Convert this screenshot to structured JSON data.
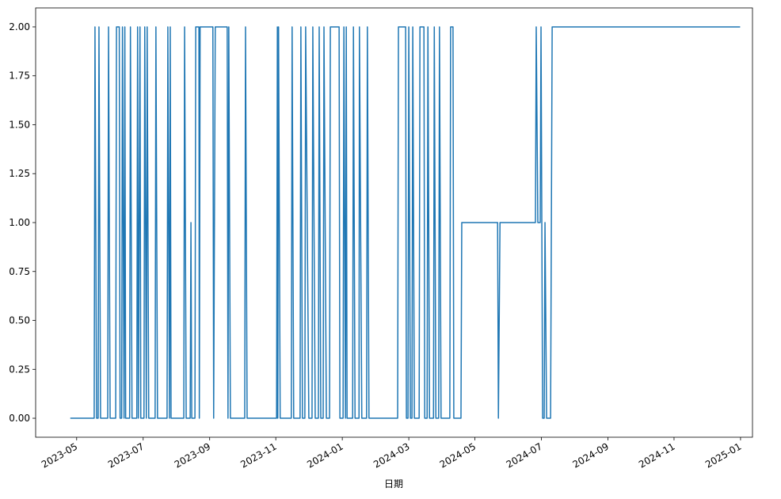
{
  "chart_data": {
    "type": "line",
    "x_label": "日期",
    "color": "#1f77b4",
    "x": [
      2023.317,
      2023.377,
      2023.379,
      2023.383,
      2023.387,
      2023.389,
      2023.393,
      2023.411,
      2023.413,
      2023.417,
      2023.431,
      2023.433,
      2023.44,
      2023.442,
      2023.446,
      2023.448,
      2023.452,
      2023.454,
      2023.456,
      2023.466,
      2023.468,
      2023.472,
      2023.484,
      2023.486,
      2023.488,
      2023.492,
      2023.494,
      2023.502,
      2023.504,
      2023.508,
      2023.51,
      2023.514,
      2023.53,
      2023.532,
      2023.536,
      2023.56,
      2023.562,
      2023.566,
      2023.568,
      2023.57,
      2023.602,
      2023.604,
      2023.608,
      2023.618,
      2023.62,
      2023.622,
      2023.63,
      2023.632,
      2023.64,
      2023.641,
      2023.643,
      2023.675,
      2023.677,
      2023.681,
      2023.711,
      2023.713,
      2023.715,
      2023.719,
      2023.755,
      2023.757,
      2023.761,
      2023.835,
      2023.837,
      2023.838,
      2023.84,
      2023.844,
      2023.872,
      2023.874,
      2023.878,
      2023.894,
      2023.896,
      2023.9,
      2023.906,
      2023.908,
      2023.916,
      2023.924,
      2023.926,
      2023.932,
      2023.94,
      2023.942,
      2023.946,
      2023.952,
      2023.954,
      2023.96,
      2023.968,
      2023.97,
      2023.992,
      2023.994,
      2024.002,
      2024.004,
      2024.008,
      2024.01,
      2024.012,
      2024.026,
      2024.028,
      2024.032,
      2024.042,
      2024.043,
      2024.049,
      2024.061,
      2024.063,
      2024.067,
      2024.139,
      2024.141,
      2024.159,
      2024.161,
      2024.165,
      2024.167,
      2024.171,
      2024.175,
      2024.177,
      2024.181,
      2024.193,
      2024.195,
      2024.205,
      2024.207,
      2024.213,
      2024.215,
      2024.219,
      2024.229,
      2024.231,
      2024.235,
      2024.242,
      2024.244,
      2024.248,
      2024.27,
      2024.272,
      2024.278,
      2024.28,
      2024.298,
      2024.3,
      2024.39,
      2024.392,
      2024.396,
      2024.485,
      2024.487,
      2024.491,
      2024.497,
      2024.499,
      2024.503,
      2024.507,
      2024.509,
      2024.513,
      2024.523,
      2024.527,
      2024.999
    ],
    "values": [
      0,
      0,
      2,
      0,
      0,
      2,
      0,
      0,
      2,
      0,
      0,
      2,
      2,
      0,
      0,
      2,
      0,
      2,
      0,
      0,
      2,
      0,
      0,
      2,
      0,
      2,
      0,
      0,
      2,
      0,
      2,
      0,
      0,
      2,
      0,
      0,
      2,
      0,
      2,
      0,
      0,
      2,
      0,
      0,
      1,
      0,
      0,
      2,
      2,
      0,
      2,
      2,
      0,
      2,
      2,
      0,
      2,
      0,
      0,
      2,
      0,
      0,
      2,
      0,
      2,
      0,
      0,
      2,
      0,
      0,
      2,
      0,
      0,
      2,
      0,
      0,
      2,
      0,
      0,
      2,
      0,
      0,
      2,
      0,
      0,
      2,
      2,
      0,
      0,
      2,
      0,
      2,
      0,
      0,
      2,
      0,
      0,
      2,
      0,
      0,
      2,
      0,
      0,
      2,
      2,
      0,
      0,
      2,
      0,
      0,
      2,
      0,
      0,
      2,
      2,
      0,
      0,
      2,
      0,
      0,
      2,
      0,
      0,
      2,
      0,
      0,
      2,
      2,
      0,
      0,
      1,
      1,
      0,
      1,
      1,
      2,
      1,
      1,
      2,
      0,
      0,
      1,
      0,
      0,
      2,
      2
    ],
    "xlim": [
      2023.23,
      2025.03
    ],
    "xticks": [
      {
        "value": 2023.333,
        "label": "2023-05"
      },
      {
        "value": 2023.5,
        "label": "2023-07"
      },
      {
        "value": 2023.667,
        "label": "2023-09"
      },
      {
        "value": 2023.833,
        "label": "2023-11"
      },
      {
        "value": 2024.0,
        "label": "2024-01"
      },
      {
        "value": 2024.167,
        "label": "2024-03"
      },
      {
        "value": 2024.333,
        "label": "2024-05"
      },
      {
        "value": 2024.5,
        "label": "2024-07"
      },
      {
        "value": 2024.667,
        "label": "2024-09"
      },
      {
        "value": 2024.833,
        "label": "2024-11"
      },
      {
        "value": 2025.0,
        "label": "2025-01"
      }
    ],
    "ylim": [
      -0.097,
      2.097
    ],
    "yticks": [
      {
        "value": 0,
        "label": "0.00"
      },
      {
        "value": 0.25,
        "label": "0.25"
      },
      {
        "value": 0.5,
        "label": "0.50"
      },
      {
        "value": 0.75,
        "label": "0.75"
      },
      {
        "value": 1,
        "label": "1.00"
      },
      {
        "value": 1.25,
        "label": "1.25"
      },
      {
        "value": 1.5,
        "label": "1.50"
      },
      {
        "value": 1.75,
        "label": "1.75"
      },
      {
        "value": 2,
        "label": "2.00"
      }
    ],
    "grid": false
  }
}
